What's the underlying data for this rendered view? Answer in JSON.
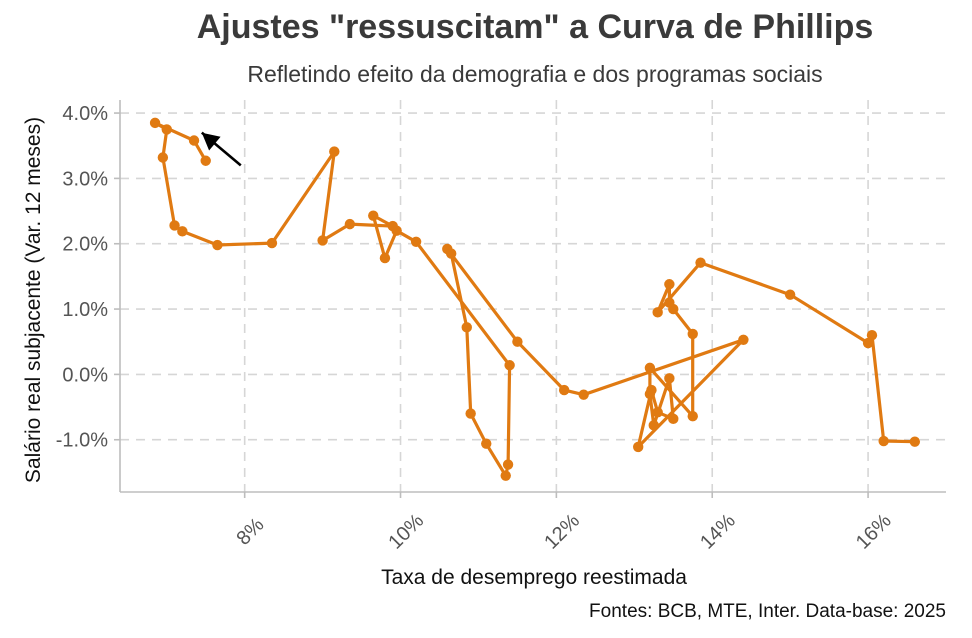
{
  "chart_data": {
    "type": "line",
    "title": "Ajustes \"ressuscitam\" a Curva de Phillips",
    "subtitle": "Refletindo efeito da demografia e dos programas sociais",
    "xlabel": "Taxa de desemprego reestimada",
    "ylabel": "Salário real subjacente (Var. 12 meses)",
    "caption": "Fontes: BCB, MTE, Inter. Data-base: 2025",
    "xlim": [
      6.4,
      17.0
    ],
    "ylim": [
      -1.8,
      4.2
    ],
    "x_ticks": [
      8,
      10,
      12,
      14,
      16
    ],
    "x_tick_labels": [
      "8%",
      "10%",
      "12%",
      "14%",
      "16%"
    ],
    "y_ticks": [
      -1,
      0,
      1,
      2,
      3,
      4
    ],
    "y_tick_labels": [
      "-1.0%",
      "0.0%",
      "1.0%",
      "2.0%",
      "3.0%",
      "4.0%"
    ],
    "grid": true,
    "series_color": "#E07A12",
    "points": [
      {
        "x": 16.6,
        "y": -1.03
      },
      {
        "x": 16.2,
        "y": -1.02
      },
      {
        "x": 16.05,
        "y": 0.6
      },
      {
        "x": 16.0,
        "y": 0.48
      },
      {
        "x": 15.0,
        "y": 1.22
      },
      {
        "x": 13.85,
        "y": 1.71
      },
      {
        "x": 13.3,
        "y": 0.95
      },
      {
        "x": 13.45,
        "y": 1.38
      },
      {
        "x": 13.45,
        "y": 1.1
      },
      {
        "x": 13.5,
        "y": 1.0
      },
      {
        "x": 13.75,
        "y": 0.62
      },
      {
        "x": 13.75,
        "y": -0.64
      },
      {
        "x": 13.2,
        "y": 0.1
      },
      {
        "x": 13.2,
        "y": -0.3
      },
      {
        "x": 13.25,
        "y": -0.78
      },
      {
        "x": 13.45,
        "y": -0.06
      },
      {
        "x": 13.5,
        "y": -0.68
      },
      {
        "x": 13.3,
        "y": -0.58
      },
      {
        "x": 13.22,
        "y": -0.24
      },
      {
        "x": 13.05,
        "y": -1.11
      },
      {
        "x": 14.4,
        "y": 0.53
      },
      {
        "x": 12.35,
        "y": -0.31
      },
      {
        "x": 12.1,
        "y": -0.24
      },
      {
        "x": 11.5,
        "y": 0.5
      },
      {
        "x": 10.6,
        "y": 1.92
      },
      {
        "x": 10.65,
        "y": 1.85
      },
      {
        "x": 10.85,
        "y": 0.72
      },
      {
        "x": 10.9,
        "y": -0.6
      },
      {
        "x": 11.1,
        "y": -1.06
      },
      {
        "x": 11.35,
        "y": -1.55
      },
      {
        "x": 11.38,
        "y": -1.38
      },
      {
        "x": 11.4,
        "y": 0.14
      },
      {
        "x": 10.2,
        "y": 2.03
      },
      {
        "x": 9.95,
        "y": 2.2
      },
      {
        "x": 9.8,
        "y": 1.78
      },
      {
        "x": 9.65,
        "y": 2.43
      },
      {
        "x": 9.9,
        "y": 2.27
      },
      {
        "x": 9.35,
        "y": 2.3
      },
      {
        "x": 9.0,
        "y": 2.05
      }
    ],
    "path_points_order": "drawn as connected path from first to last (latest first)",
    "early_points": [
      {
        "x": 9.15,
        "y": 3.41
      },
      {
        "x": 8.35,
        "y": 2.01
      },
      {
        "x": 7.65,
        "y": 1.98
      },
      {
        "x": 7.2,
        "y": 2.19
      },
      {
        "x": 7.1,
        "y": 2.28
      },
      {
        "x": 6.95,
        "y": 3.32
      },
      {
        "x": 7.0,
        "y": 3.75
      },
      {
        "x": 6.85,
        "y": 3.85
      },
      {
        "x": 7.35,
        "y": 3.58
      },
      {
        "x": 7.5,
        "y": 3.27
      }
    ],
    "arrow": {
      "from": {
        "x": 7.95,
        "y": 3.2
      },
      "to": {
        "x": 7.45,
        "y": 3.7
      },
      "color": "#000000"
    }
  }
}
